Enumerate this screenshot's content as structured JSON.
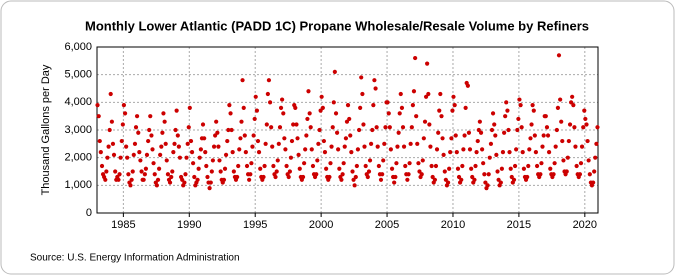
{
  "chart_data": {
    "type": "scatter",
    "title": "Monthly Lower Atlantic (PADD 1C) Propane Wholesale/Resale Volume by Refiners",
    "y_label": "Thousand Gallons per Day",
    "source": "Source: U.S. Energy Information Administration",
    "color": "#cc0000",
    "grid": true,
    "xlim": [
      1983,
      2021
    ],
    "ylim": [
      0,
      6000
    ],
    "xticks": [
      1985,
      1990,
      1995,
      2000,
      2005,
      2010,
      2015,
      2020
    ],
    "yticks": [
      0,
      {
        "value": 1000,
        "label": "1,000"
      },
      {
        "value": 2000,
        "label": "2,000"
      },
      {
        "value": 3000,
        "label": "3,000"
      },
      {
        "value": 4000,
        "label": "4,000"
      },
      {
        "value": 5000,
        "label": "5,000"
      },
      {
        "value": 6000,
        "label": "6,000"
      }
    ],
    "x": [
      1983.04,
      1983.13,
      1983.21,
      1983.29,
      1983.38,
      1983.46,
      1983.54,
      1983.63,
      1983.71,
      1983.79,
      1983.88,
      1983.96,
      1984.04,
      1984.13,
      1984.21,
      1984.29,
      1984.38,
      1984.46,
      1984.54,
      1984.63,
      1984.71,
      1984.79,
      1984.88,
      1984.96,
      1985.04,
      1985.13,
      1985.21,
      1985.29,
      1985.38,
      1985.46,
      1985.54,
      1985.63,
      1985.71,
      1985.79,
      1985.88,
      1985.96,
      1986.04,
      1986.13,
      1986.21,
      1986.29,
      1986.38,
      1986.46,
      1986.54,
      1986.63,
      1986.71,
      1986.79,
      1986.88,
      1986.96,
      1987.04,
      1987.13,
      1987.21,
      1987.29,
      1987.38,
      1987.46,
      1987.54,
      1987.63,
      1987.71,
      1987.79,
      1987.88,
      1987.96,
      1988.04,
      1988.13,
      1988.21,
      1988.29,
      1988.38,
      1988.46,
      1988.54,
      1988.63,
      1988.71,
      1988.79,
      1988.88,
      1988.96,
      1989.04,
      1989.13,
      1989.21,
      1989.29,
      1989.38,
      1989.46,
      1989.54,
      1989.63,
      1989.71,
      1989.79,
      1989.88,
      1989.96,
      1990.04,
      1990.13,
      1990.21,
      1990.29,
      1990.38,
      1990.46,
      1990.54,
      1990.63,
      1990.71,
      1990.79,
      1990.88,
      1990.96,
      1991.04,
      1991.13,
      1991.21,
      1991.29,
      1991.38,
      1991.46,
      1991.54,
      1991.63,
      1991.71,
      1991.79,
      1991.88,
      1991.96,
      1992.04,
      1992.13,
      1992.21,
      1992.29,
      1992.38,
      1992.46,
      1992.54,
      1992.63,
      1992.71,
      1992.79,
      1992.88,
      1992.96,
      1993.04,
      1993.13,
      1993.21,
      1993.29,
      1993.38,
      1993.46,
      1993.54,
      1993.63,
      1993.71,
      1993.79,
      1993.88,
      1993.96,
      1994.04,
      1994.13,
      1994.21,
      1994.29,
      1994.38,
      1994.46,
      1994.54,
      1994.63,
      1994.71,
      1994.79,
      1994.88,
      1994.96,
      1995.04,
      1995.13,
      1995.21,
      1995.29,
      1995.38,
      1995.46,
      1995.54,
      1995.63,
      1995.71,
      1995.79,
      1995.88,
      1995.96,
      1996.04,
      1996.13,
      1996.21,
      1996.29,
      1996.38,
      1996.46,
      1996.54,
      1996.63,
      1996.71,
      1996.79,
      1996.88,
      1996.96,
      1997.04,
      1997.13,
      1997.21,
      1997.29,
      1997.38,
      1997.46,
      1997.54,
      1997.63,
      1997.71,
      1997.79,
      1997.88,
      1997.96,
      1998.04,
      1998.13,
      1998.21,
      1998.29,
      1998.38,
      1998.46,
      1998.54,
      1998.63,
      1998.71,
      1998.79,
      1998.88,
      1998.96,
      1999.04,
      1999.13,
      1999.21,
      1999.29,
      1999.38,
      1999.46,
      1999.54,
      1999.63,
      1999.71,
      1999.79,
      1999.88,
      1999.96,
      2000.04,
      2000.13,
      2000.21,
      2000.29,
      2000.38,
      2000.46,
      2000.54,
      2000.63,
      2000.71,
      2000.79,
      2000.88,
      2000.96,
      2001.04,
      2001.13,
      2001.21,
      2001.29,
      2001.38,
      2001.46,
      2001.54,
      2001.63,
      2001.71,
      2001.79,
      2001.88,
      2001.96,
      2002.04,
      2002.13,
      2002.21,
      2002.29,
      2002.38,
      2002.46,
      2002.54,
      2002.63,
      2002.71,
      2002.79,
      2002.88,
      2002.96,
      2003.04,
      2003.13,
      2003.21,
      2003.29,
      2003.38,
      2003.46,
      2003.54,
      2003.63,
      2003.71,
      2003.79,
      2003.88,
      2003.96,
      2004.04,
      2004.13,
      2004.21,
      2004.29,
      2004.38,
      2004.46,
      2004.54,
      2004.63,
      2004.71,
      2004.79,
      2004.88,
      2004.96,
      2005.04,
      2005.13,
      2005.21,
      2005.29,
      2005.38,
      2005.46,
      2005.54,
      2005.63,
      2005.71,
      2005.79,
      2005.88,
      2005.96,
      2006.04,
      2006.13,
      2006.21,
      2006.29,
      2006.38,
      2006.46,
      2006.54,
      2006.63,
      2006.71,
      2006.79,
      2006.88,
      2006.96,
      2007.04,
      2007.13,
      2007.21,
      2007.29,
      2007.38,
      2007.46,
      2007.54,
      2007.63,
      2007.71,
      2007.79,
      2007.88,
      2007.96,
      2008.04,
      2008.13,
      2008.21,
      2008.29,
      2008.38,
      2008.46,
      2008.54,
      2008.63,
      2008.71,
      2008.79,
      2008.88,
      2008.96,
      2009.04,
      2009.13,
      2009.21,
      2009.29,
      2009.38,
      2009.46,
      2009.54,
      2009.63,
      2009.71,
      2009.79,
      2009.88,
      2009.96,
      2010.04,
      2010.13,
      2010.21,
      2010.29,
      2010.38,
      2010.46,
      2010.54,
      2010.63,
      2010.71,
      2010.79,
      2010.88,
      2010.96,
      2011.04,
      2011.13,
      2011.21,
      2011.29,
      2011.38,
      2011.46,
      2011.54,
      2011.63,
      2011.71,
      2011.79,
      2011.88,
      2011.96,
      2012.04,
      2012.13,
      2012.21,
      2012.29,
      2012.38,
      2012.46,
      2012.54,
      2012.63,
      2012.71,
      2012.79,
      2012.88,
      2012.96,
      2013.04,
      2013.13,
      2013.21,
      2013.29,
      2013.38,
      2013.46,
      2013.54,
      2013.63,
      2013.71,
      2013.79,
      2013.88,
      2013.96,
      2014.04,
      2014.13,
      2014.21,
      2014.29,
      2014.38,
      2014.46,
      2014.54,
      2014.63,
      2014.71,
      2014.79,
      2014.88,
      2014.96,
      2015.04,
      2015.13,
      2015.21,
      2015.29,
      2015.38,
      2015.46,
      2015.54,
      2015.63,
      2015.71,
      2015.79,
      2015.88,
      2015.96,
      2016.04,
      2016.13,
      2016.21,
      2016.29,
      2016.38,
      2016.46,
      2016.54,
      2016.63,
      2016.71,
      2016.79,
      2016.88,
      2016.96,
      2017.04,
      2017.13,
      2017.21,
      2017.29,
      2017.38,
      2017.46,
      2017.54,
      2017.63,
      2017.71,
      2017.79,
      2017.88,
      2017.96,
      2018.04,
      2018.13,
      2018.21,
      2018.29,
      2018.38,
      2018.46,
      2018.54,
      2018.63,
      2018.71,
      2018.79,
      2018.88,
      2018.96,
      2019.04,
      2019.13,
      2019.21,
      2019.29,
      2019.38,
      2019.46,
      2019.54,
      2019.63,
      2019.71,
      2019.79,
      2019.88,
      2019.96,
      2020.04,
      2020.13,
      2020.21,
      2020.29,
      2020.38,
      2020.46,
      2020.54,
      2020.63,
      2020.71,
      2020.79,
      2020.88,
      2020.96
    ],
    "values": [
      3900,
      3500,
      2600,
      2200,
      1700,
      1400,
      1300,
      1200,
      1500,
      2000,
      2400,
      3000,
      4300,
      3300,
      2500,
      2100,
      1500,
      1200,
      1300,
      1200,
      1400,
      2000,
      2600,
      3200,
      3900,
      3600,
      2400,
      2000,
      1400,
      1100,
      1000,
      1200,
      1500,
      2100,
      2500,
      3100,
      3500,
      2900,
      2200,
      1900,
      1500,
      1200,
      1200,
      1400,
      1600,
      2100,
      2600,
      3000,
      3500,
      2800,
      2300,
      1800,
      1400,
      1100,
      1000,
      1200,
      1600,
      2100,
      2400,
      2900,
      3600,
      3300,
      2500,
      1900,
      1400,
      1200,
      1100,
      1300,
      1500,
      2200,
      2500,
      3000,
      3700,
      2800,
      2400,
      2000,
      1300,
      1200,
      1000,
      1100,
      1400,
      2000,
      2500,
      3100,
      3800,
      2600,
      2200,
      1800,
      1300,
      1000,
      1100,
      1200,
      1600,
      2000,
      2300,
      2700,
      3200,
      2700,
      2200,
      1700,
      1300,
      1100,
      900,
      1100,
      1500,
      1900,
      2400,
      2800,
      3300,
      2900,
      2400,
      1900,
      1500,
      1200,
      1100,
      1200,
      1600,
      2100,
      2600,
      3000,
      3900,
      3600,
      3000,
      2200,
      1500,
      1300,
      1200,
      1300,
      1700,
      2300,
      2700,
      3300,
      4800,
      3800,
      2800,
      2200,
      1700,
      1400,
      1200,
      1400,
      1800,
      2400,
      2800,
      3400,
      4200,
      3700,
      2600,
      2200,
      1600,
      1300,
      1200,
      1300,
      1700,
      2500,
      3200,
      4300,
      4800,
      4000,
      3100,
      2400,
      1700,
      1400,
      1300,
      1500,
      1900,
      2500,
      3100,
      3800,
      4100,
      3600,
      2700,
      2300,
      1700,
      1400,
      1300,
      1500,
      2000,
      2600,
      3200,
      3900,
      3800,
      3200,
      2700,
      2100,
      1600,
      1300,
      1200,
      1300,
      1800,
      2300,
      2800,
      3400,
      4400,
      3600,
      3100,
      2300,
      1700,
      1400,
      1300,
      1400,
      1900,
      2500,
      3000,
      3700,
      4200,
      3800,
      2600,
      2200,
      1600,
      1300,
      1200,
      1300,
      1800,
      2400,
      3100,
      4000,
      5100,
      3600,
      2900,
      2300,
      1600,
      1300,
      1200,
      1400,
      1800,
      2400,
      2700,
      3300,
      3900,
      3400,
      2800,
      2200,
      1500,
      1200,
      1000,
      1300,
      1700,
      2300,
      3000,
      3800,
      4900,
      4300,
      3200,
      2400,
      1700,
      1400,
      1300,
      1500,
      1900,
      2500,
      3000,
      3900,
      4800,
      4500,
      3100,
      2400,
      1700,
      1400,
      1200,
      1400,
      1900,
      2500,
      3100,
      4000,
      4000,
      3600,
      3100,
      2300,
      1600,
      1300,
      1100,
      1300,
      1800,
      2400,
      2900,
      3600,
      4300,
      3800,
      3100,
      2400,
      1700,
      1400,
      1200,
      1400,
      1800,
      2500,
      3100,
      3900,
      4400,
      5600,
      3500,
      2500,
      1800,
      1500,
      1300,
      1400,
      1900,
      2700,
      3300,
      4200,
      5400,
      4300,
      3200,
      2400,
      1700,
      1300,
      1100,
      1200,
      1700,
      2300,
      2900,
      3700,
      4300,
      3500,
      2700,
      2100,
      1500,
      1200,
      1000,
      1100,
      1600,
      2200,
      2700,
      3700,
      4200,
      3900,
      2800,
      2200,
      1600,
      1300,
      1100,
      1200,
      1700,
      2300,
      2800,
      3800,
      4700,
      4600,
      2900,
      2300,
      1600,
      1300,
      1100,
      1200,
      1700,
      2200,
      2600,
      3000,
      3300,
      2900,
      2300,
      1800,
      1400,
      1100,
      900,
      1000,
      1400,
      2000,
      2500,
      3000,
      3600,
      3200,
      2800,
      2100,
      1500,
      1200,
      1000,
      1100,
      1600,
      2200,
      2900,
      3500,
      4000,
      3700,
      3000,
      2200,
      1600,
      1300,
      1100,
      1200,
      1700,
      2300,
      3000,
      3400,
      4100,
      3900,
      3100,
      2200,
      1600,
      1300,
      1200,
      1300,
      1700,
      2300,
      2700,
      3200,
      3900,
      3700,
      2800,
      2200,
      1700,
      1400,
      1300,
      1400,
      1800,
      2400,
      2800,
      3500,
      3500,
      3100,
      2800,
      2200,
      1600,
      1400,
      1300,
      1400,
      1800,
      2400,
      3000,
      3800,
      5700,
      4100,
      3300,
      2600,
      1900,
      1500,
      1400,
      1500,
      2000,
      2600,
      3200,
      4000,
      4200,
      3900,
      3100,
      2400,
      1700,
      1400,
      1300,
      1400,
      1800,
      2400,
      3100,
      3700,
      3400,
      3200,
      2600,
      1900,
      1400,
      1100,
      1000,
      1100,
      1500,
      2000,
      2500,
      3100
    ]
  }
}
